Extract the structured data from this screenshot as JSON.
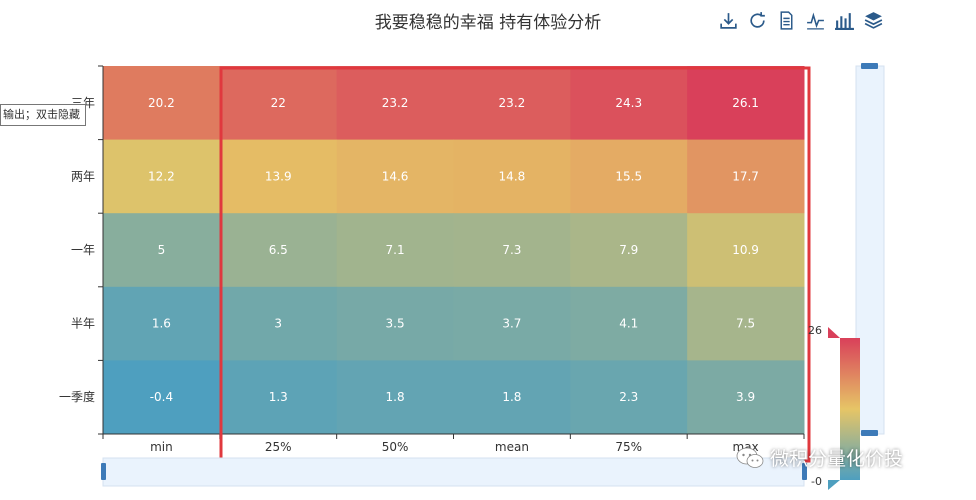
{
  "title": "我要稳稳的幸福 持有体验分析",
  "toolbox": {
    "icons": [
      "download-icon",
      "refresh-icon",
      "data-view-icon",
      "line-chart-icon",
      "bar-chart-icon",
      "stack-icon"
    ]
  },
  "tooltip": {
    "text": "输出；双击隐藏"
  },
  "watermark": {
    "text": "微积分量化价投",
    "icon": "wechat-icon"
  },
  "colors": {
    "low": "#4e9fbf",
    "mid": "#e6c566",
    "high": "#d9405a",
    "highlight_box": "#e0383e"
  },
  "chart_data": {
    "type": "heatmap",
    "title": "我要稳稳的幸福 持有体验分析",
    "x_categories": [
      "min",
      "25%",
      "50%",
      "mean",
      "75%",
      "max"
    ],
    "y_categories": [
      "三年",
      "两年",
      "一年",
      "半年",
      "一季度"
    ],
    "values": [
      [
        20.2,
        22,
        23.2,
        23.2,
        24.3,
        26.1
      ],
      [
        12.2,
        13.9,
        14.6,
        14.8,
        15.5,
        17.7
      ],
      [
        5,
        6.5,
        7.1,
        7.3,
        7.9,
        10.9
      ],
      [
        1.6,
        3,
        3.5,
        3.7,
        4.1,
        7.5
      ],
      [
        -0.4,
        1.3,
        1.8,
        1.8,
        2.3,
        3.9
      ]
    ],
    "visual_map": {
      "min": 0,
      "max": 26,
      "min_label": "-0",
      "max_label": "26"
    },
    "grid": false,
    "legend": "none"
  }
}
